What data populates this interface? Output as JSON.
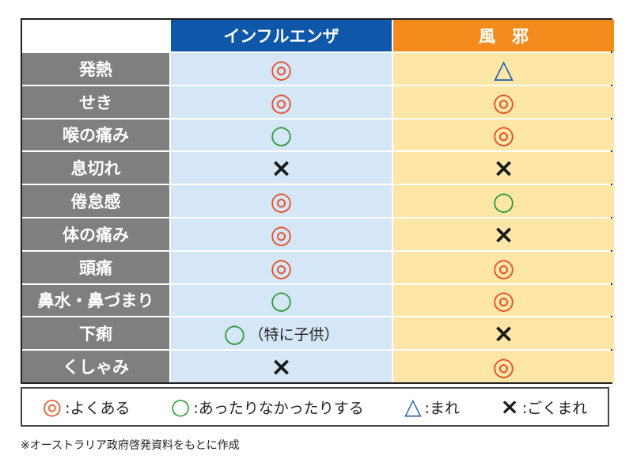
{
  "table": {
    "columns": [
      "インフルエンザ",
      "風　邪"
    ],
    "column_colors": [
      "#0f57a9",
      "#f28b1c"
    ],
    "cell_colors": [
      "#d5e7f7",
      "#fde6a6"
    ],
    "rows": [
      {
        "label": "発熱",
        "flu": "◎",
        "cold": "△"
      },
      {
        "label": "せき",
        "flu": "◎",
        "cold": "◎"
      },
      {
        "label": "喉の痛み",
        "flu": "○",
        "cold": "◎"
      },
      {
        "label": "息切れ",
        "flu": "×",
        "cold": "×"
      },
      {
        "label": "倦怠感",
        "flu": "◎",
        "cold": "○"
      },
      {
        "label": "体の痛み",
        "flu": "◎",
        "cold": "×"
      },
      {
        "label": "頭痛",
        "flu": "◎",
        "cold": "◎"
      },
      {
        "label": "鼻水・鼻づまり",
        "flu": "○",
        "cold": "◎"
      },
      {
        "label": "下痢",
        "flu": "○",
        "flu_note": "（特に子供）",
        "cold": "×"
      },
      {
        "label": "くしゃみ",
        "flu": "×",
        "cold": "◎"
      }
    ]
  },
  "legend": [
    {
      "mark": "◎",
      "color": "#e0502a",
      "label": ":よくある"
    },
    {
      "mark": "○",
      "color": "#2f9a3c",
      "label": ":あったりなかったりする"
    },
    {
      "mark": "△",
      "color": "#1f5ea8",
      "label": ":まれ"
    },
    {
      "mark": "×",
      "color": "#1a1a1a",
      "label": ":ごくまれ"
    }
  ],
  "footnote": "※オーストラリア政府啓発資料をもとに作成"
}
